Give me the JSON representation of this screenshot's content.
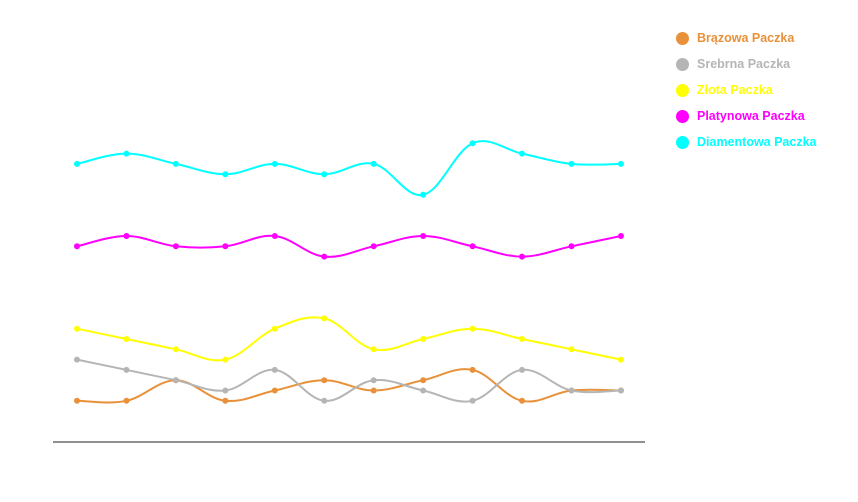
{
  "chart_data": {
    "type": "line",
    "curve": "smooth",
    "legend_position": "top-right",
    "grid": false,
    "x": [
      1,
      2,
      3,
      4,
      5,
      6,
      7,
      8,
      9,
      10,
      11,
      12
    ],
    "ylim": [
      0,
      100
    ],
    "series": [
      {
        "name": "Brązowa Paczka",
        "color": "#E8913A",
        "values": [
          10,
          10,
          15,
          10,
          12.5,
          15,
          12.5,
          15,
          17.5,
          10,
          12.5,
          12.5
        ]
      },
      {
        "name": "Srebrna Paczka",
        "color": "#B5B5B5",
        "values": [
          20,
          17.5,
          15,
          12.5,
          17.5,
          10,
          15,
          12.5,
          10,
          17.5,
          12.5,
          12.5
        ]
      },
      {
        "name": "Złota Paczka",
        "color": "#FFFF00",
        "values": [
          27.5,
          25,
          22.5,
          20,
          27.5,
          30,
          22.5,
          25,
          27.5,
          25,
          22.5,
          20
        ]
      },
      {
        "name": "Platynowa Paczka",
        "color": "#FF00FF",
        "values": [
          47.5,
          50,
          47.5,
          47.5,
          50,
          45,
          47.5,
          50,
          47.5,
          45,
          47.5,
          50
        ]
      },
      {
        "name": "Diamentowa Paczka",
        "color": "#00FFFF",
        "values": [
          67.5,
          70,
          67.5,
          65,
          67.5,
          65,
          67.5,
          60,
          72.5,
          70,
          67.5,
          67.5
        ]
      }
    ]
  }
}
